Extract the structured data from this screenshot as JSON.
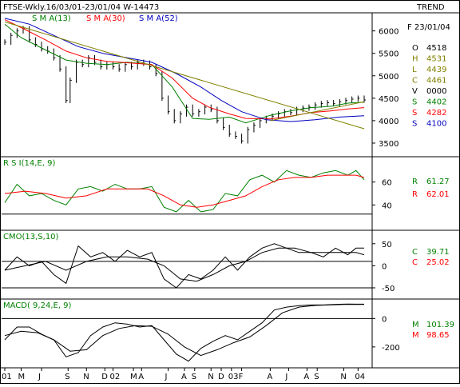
{
  "header": {
    "title": "FTSE-Wkly.16/03/01-23/01/04  W-14473",
    "trend_label": "TREND",
    "date_label": "F 23/01/04",
    "sma13_label": "S M A(13)",
    "sma30_label": "S M A(30)",
    "sma52_label": "S M A(52)"
  },
  "colors": {
    "price": "#000000",
    "sma13": "#008000",
    "sma30": "#ff0000",
    "sma52": "#0000c0",
    "trendline": "#808000",
    "rsi": "#008000",
    "rsi_avg": "#ff0000",
    "frame": "#000000"
  },
  "info_panel": {
    "ohlc": [
      {
        "key": "O",
        "value": "4518",
        "color": "#000000"
      },
      {
        "key": "H",
        "value": "4531",
        "color": "#808000"
      },
      {
        "key": "L",
        "value": "4439",
        "color": "#808000"
      },
      {
        "key": "C",
        "value": "4461",
        "color": "#808000"
      },
      {
        "key": "V",
        "value": "0000",
        "color": "#000000"
      },
      {
        "key": "S",
        "value": "4402",
        "color": "#008000"
      },
      {
        "key": "S",
        "value": "4282",
        "color": "#ff0000"
      },
      {
        "key": "S",
        "value": "4100",
        "color": "#0000c0"
      }
    ],
    "rsi": [
      {
        "key": "R",
        "value": "61.27",
        "color": "#008000"
      },
      {
        "key": "R",
        "value": "62.01",
        "color": "#ff0000"
      }
    ],
    "cmo": [
      {
        "key": "C",
        "value": "39.71",
        "color": "#008000"
      },
      {
        "key": "C",
        "value": "25.02",
        "color": "#ff0000"
      }
    ],
    "macd": [
      {
        "key": "M",
        "value": "101.39",
        "color": "#008000"
      },
      {
        "key": "M",
        "value": "98.65",
        "color": "#ff0000"
      }
    ]
  },
  "chart_data": [
    {
      "type": "line",
      "panel": "price",
      "title": "FTSE-Wkly.16/03/01-23/01/04  W-14473",
      "y_ticks": [
        "6000",
        "5500",
        "5000",
        "4500",
        "4000",
        "3500"
      ],
      "y_tick_values": [
        6000,
        5500,
        5000,
        4500,
        4000,
        3500
      ],
      "ylim": [
        3250,
        6350
      ],
      "x_ticks": [
        "01",
        "M",
        "J",
        "S",
        "N",
        "D",
        "02",
        "M",
        "A",
        "J",
        "A",
        "S",
        "N",
        "D",
        "03",
        "F",
        "A",
        "J",
        "A",
        "S",
        "N",
        "04"
      ],
      "x_tick_weeks": [
        0,
        8,
        18,
        31,
        40,
        49,
        53,
        63,
        67,
        80,
        88,
        93,
        101,
        106,
        111,
        116,
        130,
        139,
        148,
        153,
        166,
        173
      ],
      "series": [
        {
          "name": "S M A(13)",
          "key": "sma13",
          "x": [
            0,
            8,
            18,
            30,
            40,
            50,
            60,
            72,
            82,
            92,
            100,
            110,
            118,
            130,
            140,
            150,
            160,
            168,
            176
          ],
          "values": [
            6150,
            5850,
            5620,
            5350,
            5280,
            5250,
            5300,
            5250,
            4750,
            4050,
            4030,
            4080,
            3950,
            4120,
            4220,
            4290,
            4320,
            4390,
            4410
          ]
        },
        {
          "name": "S M A(30)",
          "key": "sma30",
          "x": [
            0,
            10,
            20,
            30,
            40,
            50,
            60,
            72,
            82,
            92,
            100,
            110,
            118,
            130,
            140,
            150,
            160,
            168,
            176
          ],
          "values": [
            6250,
            6030,
            5800,
            5550,
            5400,
            5320,
            5290,
            5250,
            4950,
            4500,
            4300,
            4150,
            4050,
            4040,
            4100,
            4180,
            4220,
            4260,
            4290
          ]
        },
        {
          "name": "S M A(52)",
          "key": "sma52",
          "x": [
            0,
            12,
            24,
            36,
            48,
            60,
            72,
            84,
            96,
            106,
            116,
            128,
            140,
            152,
            164,
            176
          ],
          "values": [
            6280,
            6150,
            5900,
            5650,
            5500,
            5400,
            5300,
            5050,
            4750,
            4450,
            4200,
            4020,
            3980,
            4020,
            4080,
            4110
          ]
        },
        {
          "name": "",
          "key": "trendline",
          "x": [
            0,
            176
          ],
          "values": [
            6200,
            3820
          ]
        },
        {
          "name": "",
          "key": "trendline",
          "x": [
            130,
            176
          ],
          "values": [
            4000,
            4420
          ]
        }
      ],
      "weekly_closes": {
        "x": [
          0,
          3,
          6,
          9,
          12,
          15,
          18,
          21,
          24,
          27,
          30,
          32,
          35,
          38,
          41,
          44,
          47,
          50,
          53,
          56,
          59,
          62,
          65,
          68,
          71,
          74,
          77,
          80,
          83,
          86,
          89,
          92,
          95,
          98,
          101,
          104,
          107,
          110,
          113,
          116,
          119,
          122,
          125,
          128,
          131,
          134,
          137,
          140,
          143,
          146,
          149,
          152,
          155,
          158,
          161,
          164,
          167,
          170,
          173,
          176
        ],
        "values": [
          5750,
          5900,
          6000,
          6050,
          5800,
          5700,
          5600,
          5550,
          5400,
          5150,
          4450,
          4900,
          5300,
          5250,
          5400,
          5300,
          5200,
          5250,
          5200,
          5150,
          5250,
          5200,
          5300,
          5280,
          5200,
          5050,
          4500,
          4200,
          4000,
          4150,
          4300,
          4150,
          4200,
          4300,
          4250,
          4000,
          3850,
          3700,
          3650,
          3550,
          3800,
          3900,
          4000,
          4050,
          4100,
          4150,
          4200,
          4180,
          4250,
          4280,
          4300,
          4350,
          4380,
          4400,
          4380,
          4420,
          4450,
          4480,
          4500,
          4461
        ]
      }
    },
    {
      "type": "line",
      "panel": "rsi",
      "title": "R S I(14,E, 9)",
      "y_ticks": [
        "60",
        "40"
      ],
      "y_tick_values": [
        60,
        40
      ],
      "ylim": [
        20,
        80
      ],
      "reference_lines": [
        32
      ],
      "series": [
        {
          "name": "R S I(14,E, 9)",
          "key": "rsi",
          "x": [
            0,
            6,
            12,
            18,
            24,
            30,
            36,
            42,
            48,
            54,
            60,
            66,
            72,
            78,
            84,
            90,
            96,
            102,
            108,
            114,
            120,
            126,
            132,
            138,
            144,
            150,
            156,
            162,
            168,
            172,
            176
          ],
          "values": [
            42,
            58,
            48,
            50,
            44,
            40,
            54,
            56,
            52,
            58,
            54,
            54,
            56,
            38,
            34,
            44,
            34,
            36,
            50,
            48,
            62,
            66,
            60,
            70,
            66,
            64,
            68,
            70,
            66,
            70,
            62
          ]
        },
        {
          "name": "",
          "key": "rsi_avg",
          "x": [
            0,
            10,
            20,
            30,
            40,
            50,
            60,
            70,
            78,
            86,
            94,
            102,
            110,
            118,
            126,
            134,
            142,
            150,
            158,
            166,
            172,
            176
          ],
          "values": [
            50,
            52,
            50,
            46,
            48,
            54,
            54,
            54,
            48,
            40,
            38,
            40,
            44,
            48,
            56,
            62,
            64,
            64,
            66,
            66,
            66,
            64
          ]
        }
      ]
    },
    {
      "type": "line",
      "panel": "cmo",
      "title": "CMO(13,S,10)",
      "y_ticks": [
        "50",
        "0",
        "-50"
      ],
      "y_tick_values": [
        50,
        0,
        -50
      ],
      "ylim": [
        -70,
        75
      ],
      "reference_lines": [
        10,
        -50
      ],
      "series": [
        {
          "name": "CMO(13,S,10)",
          "key": "cmo",
          "x": [
            0,
            6,
            12,
            18,
            24,
            30,
            36,
            42,
            48,
            54,
            60,
            66,
            72,
            78,
            84,
            90,
            96,
            102,
            108,
            114,
            120,
            126,
            132,
            138,
            144,
            150,
            156,
            162,
            168,
            172,
            176
          ],
          "values": [
            -10,
            20,
            0,
            10,
            -20,
            -40,
            45,
            20,
            30,
            10,
            35,
            20,
            30,
            -30,
            -50,
            -20,
            -30,
            -10,
            20,
            -10,
            20,
            40,
            50,
            40,
            30,
            30,
            20,
            40,
            25,
            40,
            40
          ]
        },
        {
          "name": "",
          "key": "cmo_avg",
          "x": [
            0,
            10,
            20,
            30,
            40,
            50,
            60,
            70,
            78,
            86,
            94,
            102,
            110,
            118,
            126,
            134,
            142,
            150,
            158,
            166,
            172,
            176
          ],
          "values": [
            -10,
            0,
            10,
            -10,
            10,
            20,
            20,
            15,
            0,
            -30,
            -35,
            -20,
            0,
            10,
            30,
            40,
            40,
            30,
            30,
            30,
            30,
            25
          ]
        }
      ]
    },
    {
      "type": "line",
      "panel": "macd",
      "title": "MACD( 9,24,E, 9)",
      "y_ticks": [
        "0",
        "-200"
      ],
      "y_tick_values": [
        0,
        -200
      ],
      "ylim": [
        -330,
        120
      ],
      "reference_lines": [
        0
      ],
      "series": [
        {
          "name": "MACD( 9,24,E, 9)",
          "key": "macd",
          "x": [
            0,
            6,
            12,
            18,
            24,
            30,
            36,
            42,
            48,
            54,
            60,
            66,
            72,
            78,
            84,
            90,
            96,
            102,
            108,
            114,
            120,
            126,
            132,
            138,
            144,
            150,
            156,
            162,
            168,
            172,
            176
          ],
          "values": [
            -150,
            -60,
            -60,
            -110,
            -150,
            -270,
            -240,
            -120,
            -60,
            -30,
            -40,
            -60,
            -50,
            -150,
            -250,
            -300,
            -210,
            -160,
            -120,
            -150,
            -90,
            -30,
            60,
            80,
            90,
            95,
            95,
            100,
            102,
            101,
            101
          ]
        },
        {
          "name": "",
          "key": "macd_signal",
          "x": [
            0,
            8,
            16,
            24,
            32,
            40,
            48,
            56,
            64,
            72,
            80,
            88,
            96,
            104,
            112,
            120,
            128,
            136,
            144,
            152,
            160,
            168,
            176
          ],
          "values": [
            -120,
            -90,
            -100,
            -150,
            -230,
            -220,
            -120,
            -70,
            -50,
            -55,
            -110,
            -200,
            -260,
            -220,
            -170,
            -130,
            -50,
            40,
            80,
            92,
            96,
            100,
            99
          ]
        }
      ]
    }
  ]
}
